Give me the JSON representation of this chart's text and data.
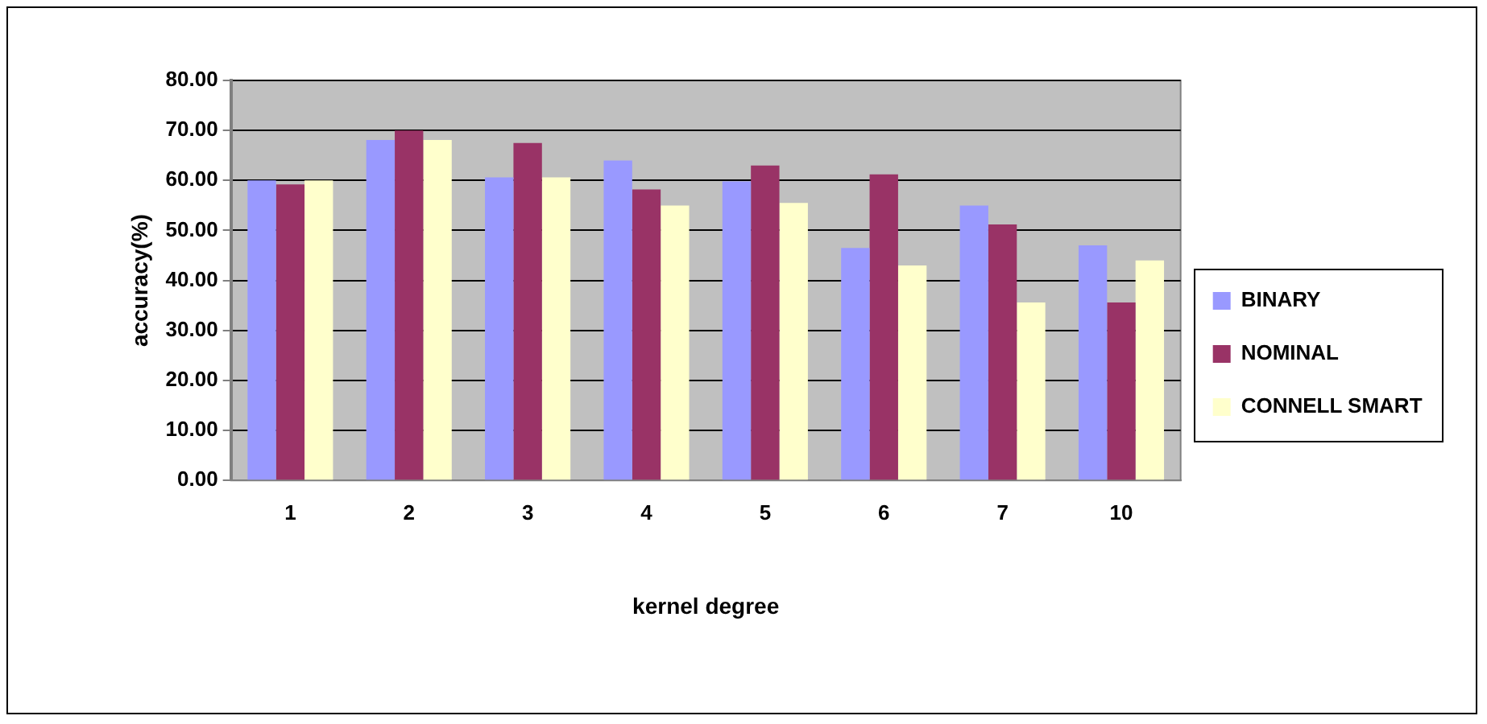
{
  "chart_data": {
    "type": "bar",
    "xlabel": "kernel degree",
    "ylabel": "accuracy(%)",
    "categories": [
      "1",
      "2",
      "3",
      "4",
      "5",
      "6",
      "7",
      "10"
    ],
    "series": [
      {
        "name": "BINARY",
        "color": "#9999ff",
        "values": [
          60.0,
          68.1,
          60.6,
          64.0,
          59.8,
          46.5,
          55.0,
          47.0
        ]
      },
      {
        "name": "NOMINAL",
        "color": "#993366",
        "values": [
          59.2,
          70.0,
          67.5,
          58.2,
          63.0,
          61.2,
          51.2,
          35.6
        ]
      },
      {
        "name": "CONNELL SMART",
        "color": "#ffffcc",
        "values": [
          60.0,
          68.1,
          60.6,
          55.0,
          55.5,
          43.0,
          35.6,
          44.0
        ]
      }
    ],
    "ylim": [
      0,
      80
    ],
    "yticks": [
      {
        "value": 0,
        "label": "0.00"
      },
      {
        "value": 10,
        "label": "10.00"
      },
      {
        "value": 20,
        "label": "20.00"
      },
      {
        "value": 30,
        "label": "30.00"
      },
      {
        "value": 40,
        "label": "40.00"
      },
      {
        "value": 50,
        "label": "50.00"
      },
      {
        "value": 60,
        "label": "60.00"
      },
      {
        "value": 70,
        "label": "70.00"
      },
      {
        "value": 80,
        "label": "80.00"
      }
    ],
    "grid": "y",
    "legend": "right"
  }
}
